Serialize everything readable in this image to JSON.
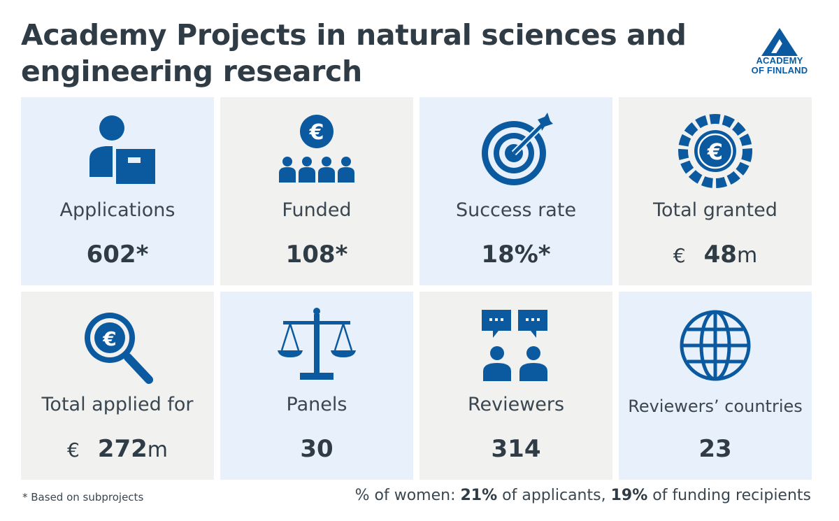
{
  "title": "Academy Projects in natural sciences and engineering research",
  "logo": {
    "line1": "ACADEMY",
    "line2": "OF FINLAND"
  },
  "tiles": [
    {
      "label": "Applications",
      "value": "602*",
      "icon": "applicant-icon"
    },
    {
      "label": "Funded",
      "value": "108*",
      "icon": "funded-group-euro-icon"
    },
    {
      "label": "Success rate",
      "value": "18%*",
      "icon": "target-icon"
    },
    {
      "label": "Total granted",
      "currency": "€",
      "value": "48",
      "unit": "m",
      "icon": "euro-coin-icon"
    },
    {
      "label": "Total applied for",
      "currency": "€",
      "value": "272",
      "unit": "m",
      "icon": "euro-magnifier-icon"
    },
    {
      "label": "Panels",
      "value": "30",
      "icon": "scales-icon"
    },
    {
      "label": "Reviewers",
      "value": "314",
      "icon": "reviewers-icon"
    },
    {
      "label": "Reviewers’ countries",
      "value": "23",
      "icon": "globe-icon"
    }
  ],
  "footer": {
    "note": "* Based on subprojects",
    "women_prefix": "% of women: ",
    "applicants_pct": "21%",
    "applicants_text": " of applicants, ",
    "recipients_pct": "19%",
    "recipients_text": " of funding recipients"
  },
  "colors": {
    "accent": "#0b5aa0",
    "tile_blue": "#e8f1fb",
    "tile_grey": "#f1f1f0",
    "text": "#2f3b45"
  }
}
